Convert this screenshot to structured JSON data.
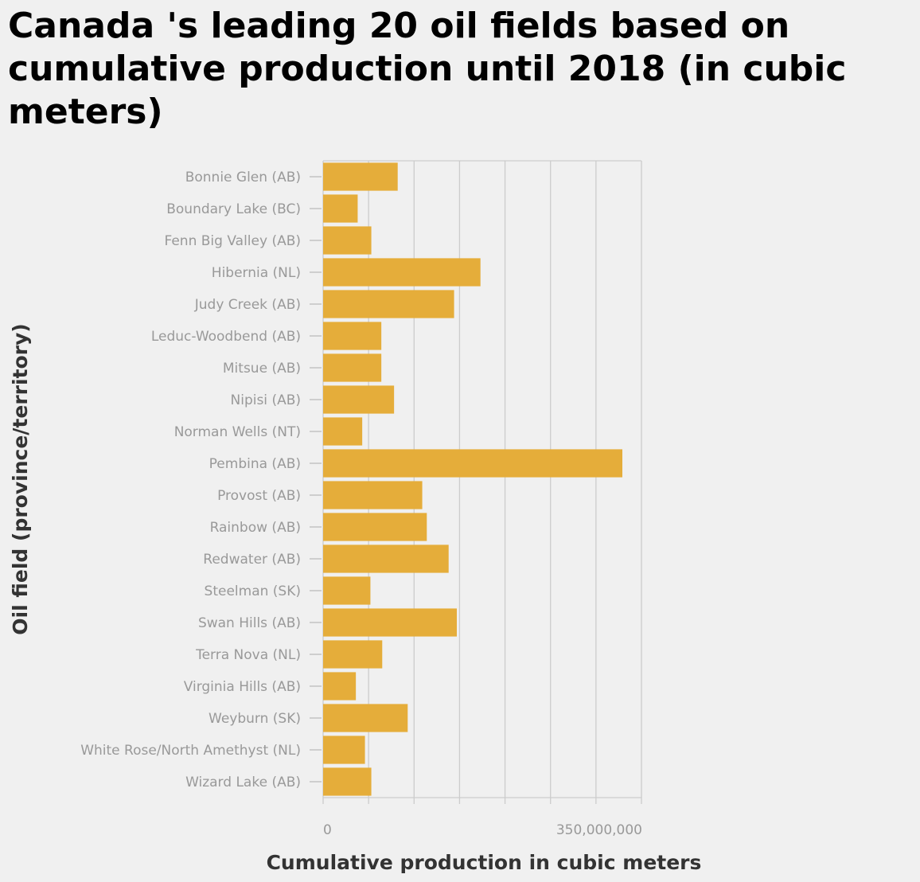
{
  "chart_data": {
    "type": "bar",
    "orientation": "horizontal",
    "title": "Canada 's leading 20 oil fields based on cumulative production until 2018 (in cubic meters)",
    "xlabel": "Cumulative production in cubic meters",
    "ylabel": "Oil field (province/territory)",
    "xlim": [
      0,
      350000000
    ],
    "x_tick_labels": [
      {
        "value": 0,
        "label": "0"
      },
      {
        "value": 350000000,
        "label": "350,000,000"
      }
    ],
    "grid_values": [
      0,
      50000000,
      100000000,
      150000000,
      200000000,
      250000000,
      300000000,
      350000000
    ],
    "grid": true,
    "bar_color": "#e5ad3a",
    "categories": [
      "Bonnie Glen (AB)",
      "Boundary Lake (BC)",
      "Fenn Big Valley (AB)",
      "Hibernia (NL)",
      "Judy Creek (AB)",
      "Leduc-Woodbend (AB)",
      "Mitsue (AB)",
      "Nipisi (AB)",
      "Norman Wells (NT)",
      "Pembina (AB)",
      "Provost (AB)",
      "Rainbow (AB)",
      "Redwater (AB)",
      "Steelman (SK)",
      "Swan Hills (AB)",
      "Terra Nova (NL)",
      "Virginia Hills (AB)",
      "Weyburn (SK)",
      "White Rose/North Amethyst (NL)",
      "Wizard Lake (AB)"
    ],
    "values": [
      82000000,
      38000000,
      53000000,
      173000000,
      144000000,
      64000000,
      64000000,
      78000000,
      43000000,
      329000000,
      109000000,
      114000000,
      138000000,
      52000000,
      147000000,
      65000000,
      36000000,
      93000000,
      46000000,
      53000000
    ]
  }
}
